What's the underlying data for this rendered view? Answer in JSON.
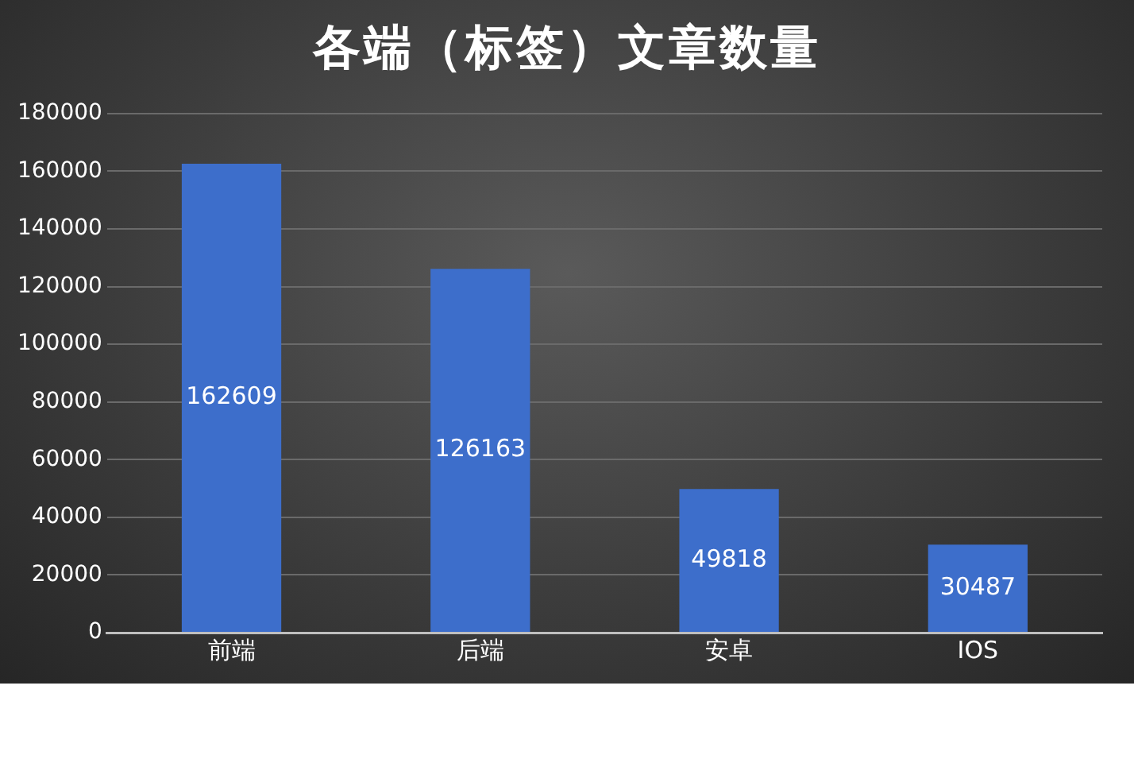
{
  "chart_data": {
    "type": "bar",
    "title": "各端（标签）文章数量",
    "categories": [
      "前端",
      "后端",
      "安卓",
      "IOS"
    ],
    "values": [
      162609,
      126163,
      49818,
      30487
    ],
    "color": "#3d6ecb",
    "ylim": [
      0,
      180000
    ],
    "yticks": [
      0,
      20000,
      40000,
      60000,
      80000,
      100000,
      120000,
      140000,
      160000,
      180000
    ],
    "grid": "y",
    "data_labels": true
  }
}
